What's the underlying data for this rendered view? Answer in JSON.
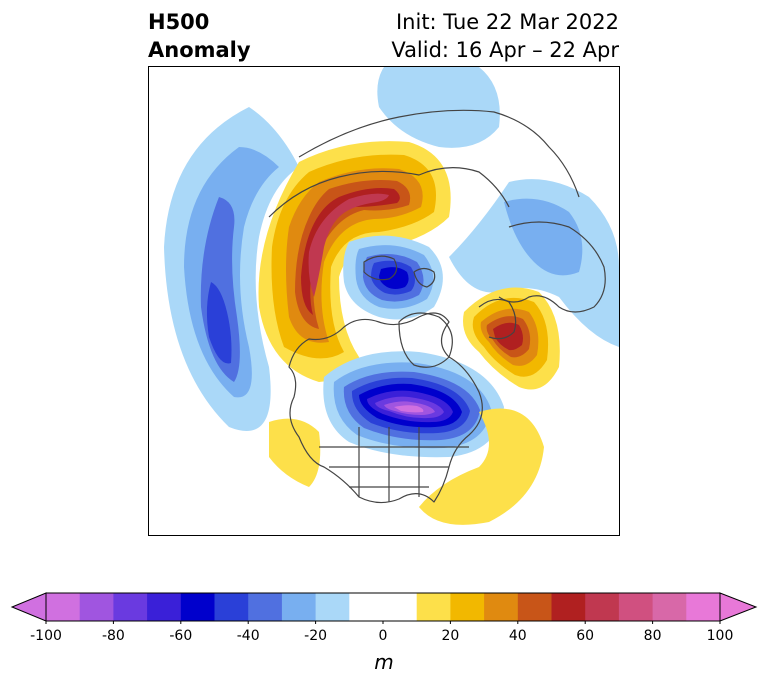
{
  "title": {
    "left_line1": "H500",
    "left_line2": "Anomaly",
    "right_line1": "Init: Tue 22 Mar 2022",
    "right_line2": "Valid: 16 Apr – 22 Apr"
  },
  "colorbar": {
    "unit": "m",
    "ticks": [
      "-100",
      "-80",
      "-60",
      "-40",
      "-20",
      "0",
      "20",
      "40",
      "60",
      "80",
      "100"
    ],
    "min_color": "#d070e0",
    "max_color": "#e878d8",
    "bin_colors": [
      "#d070e0",
      "#a055e0",
      "#6a3ae0",
      "#3a20d8",
      "#0000cc",
      "#2a40d8",
      "#5070e0",
      "#78aff0",
      "#aad8f8",
      "#ffffff",
      "#ffffff",
      "#fde04a",
      "#f2b800",
      "#e08a10",
      "#c85518",
      "#b02020",
      "#c03850",
      "#d05080",
      "#d868a8",
      "#e878d8"
    ]
  },
  "map": {
    "projection": "north-polar stereographic",
    "anomalies": [
      {
        "region": "Pacific / Aleutians",
        "sign": "negative",
        "peak": -60
      },
      {
        "region": "Alaska / Siberia",
        "sign": "positive",
        "peak": 70
      },
      {
        "region": "Arctic / northern Greenland",
        "sign": "negative",
        "peak": -60
      },
      {
        "region": "Scandinavia",
        "sign": "positive",
        "peak": 60
      },
      {
        "region": "Hudson Bay / Eastern Canada",
        "sign": "negative",
        "peak": -100
      },
      {
        "region": "Western Europe / North Atlantic",
        "sign": "negative",
        "peak": -30
      },
      {
        "region": "Western US coast",
        "sign": "positive",
        "peak": 20
      },
      {
        "region": "Subtropical Atlantic",
        "sign": "positive",
        "peak": 20
      }
    ]
  }
}
